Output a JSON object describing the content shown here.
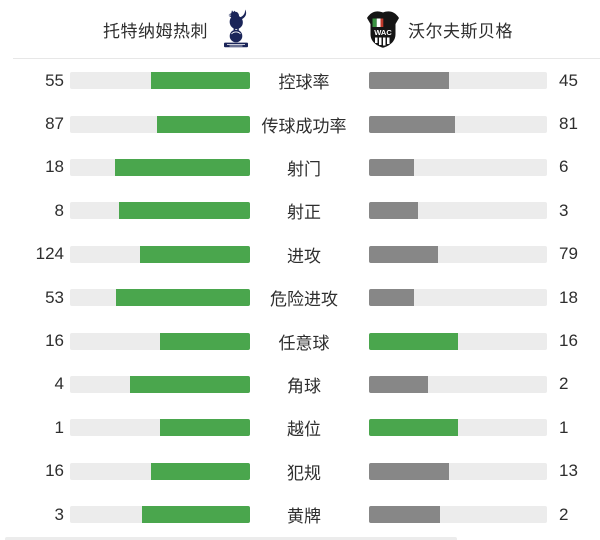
{
  "match": {
    "home_team": "托特纳姆热刺",
    "away_team": "沃尔夫斯贝格",
    "home_logo_icon": "tottenham-hotspur-crest",
    "away_logo_icon": "wolfsberger-ac-crest"
  },
  "palette": {
    "green": "#4aa64d",
    "gray": "#878787",
    "track": "#ececec"
  },
  "stats": [
    {
      "label": "控球率",
      "home": 55,
      "away": 45,
      "home_color": "green",
      "away_color": "gray"
    },
    {
      "label": "传球成功率",
      "home": 87,
      "away": 81,
      "home_color": "green",
      "away_color": "gray"
    },
    {
      "label": "射门",
      "home": 18,
      "away": 6,
      "home_color": "green",
      "away_color": "gray"
    },
    {
      "label": "射正",
      "home": 8,
      "away": 3,
      "home_color": "green",
      "away_color": "gray"
    },
    {
      "label": "进攻",
      "home": 124,
      "away": 79,
      "home_color": "green",
      "away_color": "gray"
    },
    {
      "label": "危险进攻",
      "home": 53,
      "away": 18,
      "home_color": "green",
      "away_color": "gray"
    },
    {
      "label": "任意球",
      "home": 16,
      "away": 16,
      "home_color": "green",
      "away_color": "green"
    },
    {
      "label": "角球",
      "home": 4,
      "away": 2,
      "home_color": "green",
      "away_color": "gray"
    },
    {
      "label": "越位",
      "home": 1,
      "away": 1,
      "home_color": "green",
      "away_color": "green"
    },
    {
      "label": "犯规",
      "home": 16,
      "away": 13,
      "home_color": "green",
      "away_color": "gray"
    },
    {
      "label": "黄牌",
      "home": 3,
      "away": 2,
      "home_color": "green",
      "away_color": "gray"
    }
  ],
  "chart_data": {
    "type": "bar",
    "title": "",
    "categories": [
      "控球率",
      "传球成功率",
      "射门",
      "射正",
      "进攻",
      "危险进攻",
      "任意球",
      "角球",
      "越位",
      "犯规",
      "黄牌"
    ],
    "series": [
      {
        "name": "托特纳姆热刺",
        "values": [
          55,
          87,
          18,
          8,
          124,
          53,
          16,
          4,
          1,
          16,
          3
        ]
      },
      {
        "name": "沃尔夫斯贝格",
        "values": [
          45,
          81,
          6,
          3,
          79,
          18,
          16,
          2,
          1,
          13,
          2
        ]
      }
    ],
    "layout": "paired horizontal bars per category; each side's fill fraction = value/(home+away); home bars fill toward center, away bars fill from center; leading/tied side bar is green, trailing side bar is gray",
    "legend_position": "header",
    "grid": false
  }
}
